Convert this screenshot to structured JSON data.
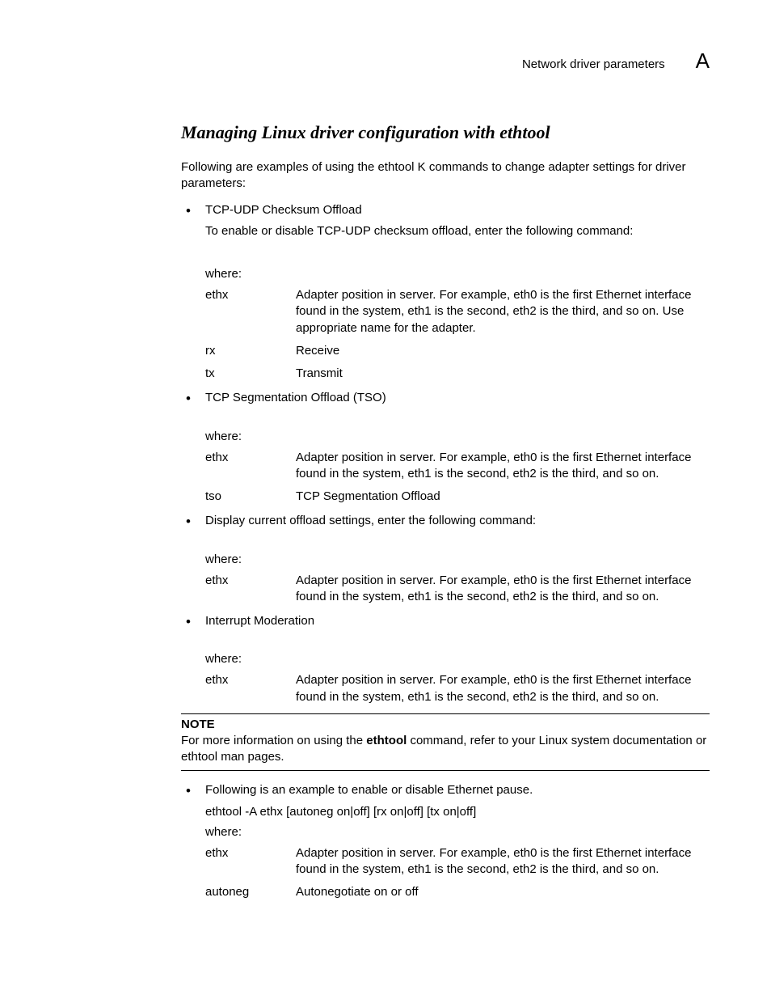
{
  "header": {
    "section_title": "Network driver parameters",
    "appendix_letter": "A"
  },
  "title": "Managing Linux driver configuration with ethtool",
  "intro": "Following are examples of using the ethtool K commands to change adapter settings for driver parameters:",
  "items": [
    {
      "heading": "TCP-UDP Checksum Offload",
      "subtext": "To enable or disable TCP-UDP checksum offload, enter the following command:",
      "where_label": "where:",
      "defs": [
        {
          "term": "ethx",
          "desc": "Adapter position in server. For example, eth0 is the first Ethernet interface found in the system, eth1 is the second, eth2 is the third, and so on. Use appropriate name for the adapter."
        },
        {
          "term": "rx",
          "desc": "Receive"
        },
        {
          "term": "tx",
          "desc": "Transmit"
        }
      ]
    },
    {
      "heading": "TCP Segmentation Offload (TSO)",
      "where_label": "where:",
      "defs": [
        {
          "term": "ethx",
          "desc": "Adapter position in server. For example, eth0 is the first Ethernet interface found in the system, eth1 is the second, eth2 is the third, and so on."
        },
        {
          "term": "tso",
          "desc": "TCP Segmentation Offload"
        }
      ]
    },
    {
      "heading": "Display current offload settings, enter the following command:",
      "where_label": "where:",
      "defs": [
        {
          "term": "ethx",
          "desc": "Adapter position in server. For example, eth0 is the first Ethernet interface found in the system, eth1 is the second, eth2 is the third, and so on."
        }
      ]
    },
    {
      "heading": "Interrupt Moderation",
      "where_label": "where:",
      "defs": [
        {
          "term": "ethx",
          "desc": "Adapter position in server. For example, eth0 is the first Ethernet interface found in the system, eth1 is the second, eth2 is the third, and so on."
        }
      ]
    }
  ],
  "note": {
    "label": "NOTE",
    "text_pre": "For more information on using the ",
    "text_bold": "ethtool",
    "text_post": " command, refer to your Linux system documentation or ethtool man pages."
  },
  "pause_item": {
    "heading": "Following is an example to enable or disable Ethernet pause.",
    "command": "ethtool -A ethx [autoneg on|off] [rx on|off] [tx on|off]",
    "where_label": "where:",
    "defs": [
      {
        "term": "ethx",
        "desc": "Adapter position in server. For example, eth0 is the first Ethernet interface found in the system, eth1 is the second, eth2 is the third, and so on."
      },
      {
        "term": "autoneg",
        "desc": "Autonegotiate on or off"
      }
    ]
  }
}
